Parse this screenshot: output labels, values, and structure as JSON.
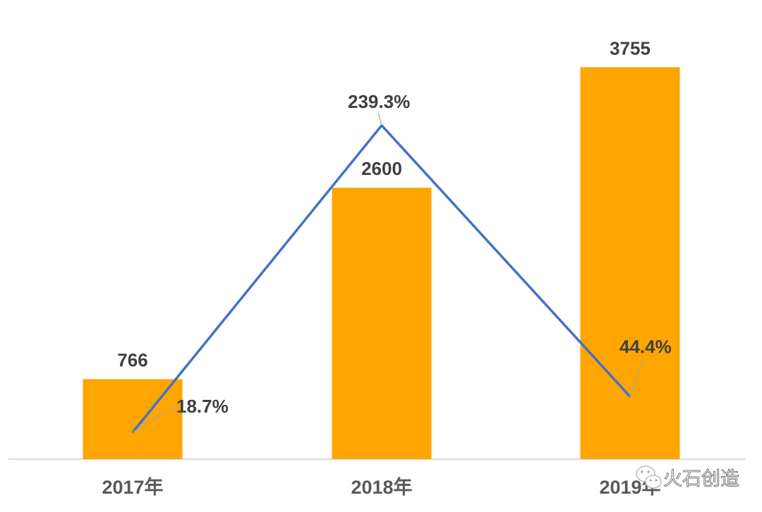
{
  "chart_data": {
    "type": "bar+line",
    "categories": [
      "2017年",
      "2018年",
      "2019年"
    ],
    "series": [
      {
        "type": "bar",
        "values": [
          766,
          2600,
          3755
        ],
        "labels": [
          "766",
          "2600",
          "3755"
        ],
        "color": "#FFA500",
        "axis": "left"
      },
      {
        "type": "line",
        "values": [
          18.7,
          239.3,
          44.4
        ],
        "labels": [
          "18.7%",
          "239.3%",
          "44.4%"
        ],
        "color": "#4472C4",
        "axis": "right"
      }
    ],
    "ylim_left": [
      0,
      4000
    ],
    "ylim_right": [
      0,
      300
    ],
    "grid": false,
    "axes_visible": false,
    "title": "",
    "xlabel": "",
    "ylabel": ""
  },
  "watermark": {
    "text": "火石创造",
    "icon": "wechat-icon"
  }
}
